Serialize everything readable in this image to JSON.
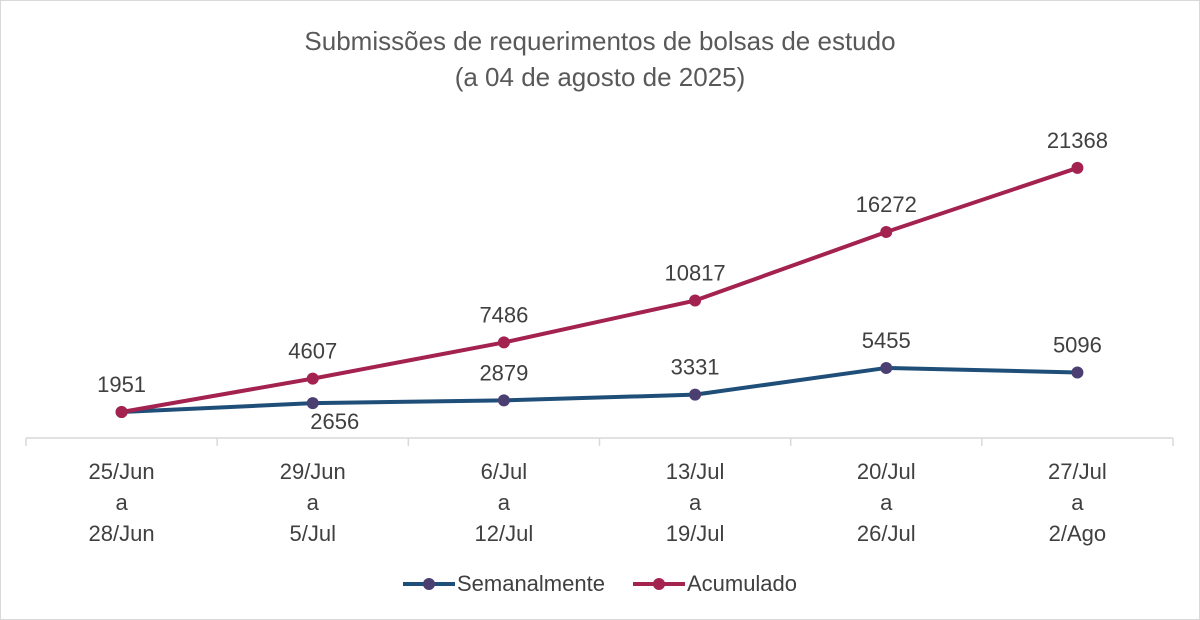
{
  "chart_data": {
    "type": "line",
    "title": "Submissões de requerimentos de bolsas de estudo",
    "subtitle": "(a 04 de agosto de 2025)",
    "categories": [
      [
        "25/Jun",
        "a",
        "28/Jun"
      ],
      [
        "29/Jun",
        "a",
        "5/Jul"
      ],
      [
        "6/Jul",
        "a",
        "12/Jul"
      ],
      [
        "13/Jul",
        "a",
        "19/Jul"
      ],
      [
        "20/Jul",
        "a",
        "26/Jul"
      ],
      [
        "27/Jul",
        "a",
        "2/Ago"
      ]
    ],
    "series": [
      {
        "name": "Semanalmente",
        "values": [
          1951,
          2656,
          2879,
          3331,
          5455,
          5096
        ],
        "color": "#1f4e79",
        "marker_color": "#4b3f72"
      },
      {
        "name": "Acumulado",
        "values": [
          1951,
          4607,
          7486,
          10817,
          16272,
          21368
        ],
        "color": "#a3224f",
        "marker_color": "#a3224f"
      }
    ],
    "data_labels": [
      {
        "text": "1951"
      },
      {
        "text": "2656"
      },
      {
        "text": "2879"
      },
      {
        "text": "3331"
      },
      {
        "text": "5455"
      },
      {
        "text": "5096"
      },
      {
        "text": "4607"
      },
      {
        "text": "7486"
      },
      {
        "text": "10817"
      },
      {
        "text": "16272"
      },
      {
        "text": "21368"
      }
    ],
    "grid": false,
    "legend_position": "bottom"
  }
}
